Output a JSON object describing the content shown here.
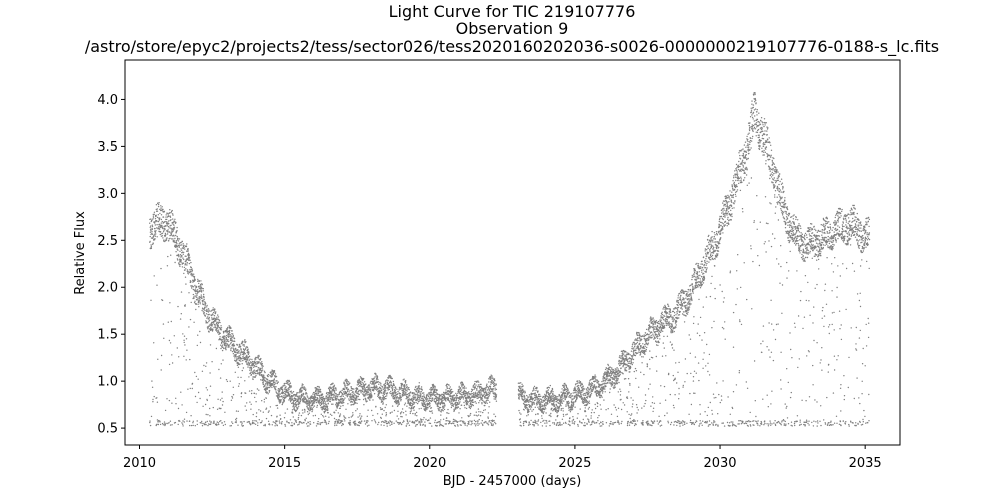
{
  "chart_data": {
    "type": "scatter",
    "title_lines": [
      "Light Curve for TIC 219107776",
      "Observation 9",
      "/astro/store/epyc2/projects2/tess/sector026/tess2020160202036-s0026-0000000219107776-0188-s_lc.fits"
    ],
    "xlabel": "BJD - 2457000 (days)",
    "ylabel": "Relative Flux",
    "xlim": [
      2009.5,
      2036.2
    ],
    "ylim": [
      0.32,
      4.42
    ],
    "xticks": [
      2010,
      2015,
      2020,
      2025,
      2030,
      2035
    ],
    "yticks": [
      0.5,
      1.0,
      1.5,
      2.0,
      2.5,
      3.0,
      3.5,
      4.0
    ],
    "xtick_labels": [
      "2010",
      "2015",
      "2020",
      "2025",
      "2030",
      "2035"
    ],
    "ytick_labels": [
      "0.5",
      "1.0",
      "1.5",
      "2.0",
      "2.5",
      "3.0",
      "3.5",
      "4.0"
    ],
    "grid": false,
    "legend": "none",
    "marker_color": "#7f7f7f",
    "series": [
      {
        "points": [
          [
            2010.4,
            2.62
          ],
          [
            2010.8,
            2.72
          ],
          [
            2011.2,
            2.58
          ],
          [
            2011.6,
            2.28
          ],
          [
            2012.0,
            1.95
          ],
          [
            2012.4,
            1.7
          ],
          [
            2012.8,
            1.52
          ],
          [
            2013.2,
            1.38
          ],
          [
            2013.6,
            1.28
          ],
          [
            2014.0,
            1.15
          ],
          [
            2014.4,
            1.02
          ],
          [
            2014.8,
            0.92
          ],
          [
            2015.2,
            0.85
          ],
          [
            2015.6,
            0.82
          ],
          [
            2016.0,
            0.8
          ],
          [
            2016.5,
            0.82
          ],
          [
            2017.0,
            0.86
          ],
          [
            2017.5,
            0.9
          ],
          [
            2018.0,
            0.93
          ],
          [
            2018.5,
            0.92
          ],
          [
            2019.0,
            0.88
          ],
          [
            2019.5,
            0.84
          ],
          [
            2020.0,
            0.82
          ],
          [
            2020.5,
            0.82
          ],
          [
            2021.0,
            0.84
          ],
          [
            2021.5,
            0.86
          ],
          [
            2022.0,
            0.9
          ],
          [
            2022.2,
            0.92
          ],
          [
            2023.1,
            0.85
          ],
          [
            2023.5,
            0.8
          ],
          [
            2024.0,
            0.8
          ],
          [
            2024.5,
            0.82
          ],
          [
            2025.0,
            0.85
          ],
          [
            2025.5,
            0.9
          ],
          [
            2026.0,
            0.98
          ],
          [
            2026.5,
            1.12
          ],
          [
            2027.0,
            1.3
          ],
          [
            2027.5,
            1.48
          ],
          [
            2028.0,
            1.62
          ],
          [
            2028.5,
            1.72
          ],
          [
            2029.0,
            1.95
          ],
          [
            2029.5,
            2.28
          ],
          [
            2030.0,
            2.6
          ],
          [
            2030.5,
            3.05
          ],
          [
            2030.9,
            3.45
          ],
          [
            2031.2,
            3.85
          ],
          [
            2031.5,
            3.6
          ],
          [
            2031.8,
            3.3
          ],
          [
            2032.2,
            2.82
          ],
          [
            2032.6,
            2.55
          ],
          [
            2033.0,
            2.45
          ],
          [
            2033.5,
            2.52
          ],
          [
            2034.0,
            2.62
          ],
          [
            2034.5,
            2.68
          ],
          [
            2035.0,
            2.55
          ]
        ],
        "floor": 0.55,
        "x_range": [
          2010.35,
          2035.15
        ],
        "gap": [
          2022.3,
          2023.05
        ]
      }
    ]
  }
}
